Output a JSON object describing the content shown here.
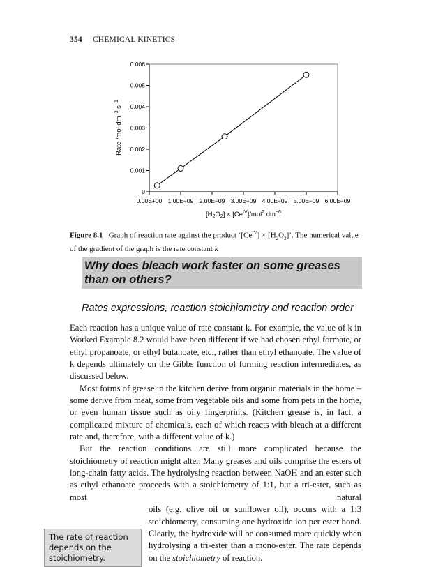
{
  "running_head": {
    "page_number": "354",
    "title": "CHEMICAL KINETICS"
  },
  "chart_data": {
    "type": "line",
    "title": "",
    "xlabel": "[H2O2] × [CeIV]/mol2 dm−6",
    "ylabel": "Rate /mol dm−3 s−1",
    "xlim": [
      0,
      6e-09
    ],
    "ylim": [
      0,
      0.006
    ],
    "x_ticks": [
      "0.00E+00",
      "1.00E−09",
      "2.00E−09",
      "3.00E−09",
      "4.00E−09",
      "5.00E−09",
      "6.00E−09"
    ],
    "y_ticks": [
      "0",
      "0.001",
      "0.002",
      "0.003",
      "0.004",
      "0.005",
      "0.006"
    ],
    "x": [
      2.5e-10,
      1e-09,
      2.4e-09,
      5e-09
    ],
    "y": [
      0.0003,
      0.0011,
      0.0026,
      0.0055
    ],
    "marker": "open-circle",
    "grid": false,
    "line_color": "#000000"
  },
  "caption": {
    "label": "Figure 8.1",
    "text": "Graph of reaction rate against the product ‘[Ce",
    "sup": "IV",
    "text2": "] × [H",
    "sub1": "2",
    "text3": "O",
    "sub2": "2",
    "text4": "]’. The numerical value of the gradient of the graph is the rate constant ",
    "k": "k"
  },
  "box_heading": "Why does bleach work faster on some greases than on others?",
  "subheading": "Rates expressions, reaction stoichiometry and reaction order",
  "paragraphs": [
    "Each reaction has a unique value of rate constant k. For example, the value of k in Worked Example 8.2 would have been different if we had chosen ethyl formate, or ethyl propanoate, or ethyl butanoate, etc., rather than ethyl ethanoate. The value of k depends ultimately on the Gibbs function of forming reaction intermediates, as discussed below.",
    "Most forms of grease in the kitchen derive from organic materials in the home – some derive from meat, some from vegetable oils and some from pets in the home, or even human tissue such as oily fingerprints. (Kitchen grease is, in fact, a complicated mixture of chemicals, each of which reacts with bleach at a different rate and, therefore, with a different value of k.)",
    "But the reaction conditions are still more complicated because the stoichiometry of reaction might alter. Many greases and oils comprise the esters of long-chain fatty acids. The hydrolysing reaction between NaOH and an ester such as ethyl ethanoate proceeds with a stoichiometry of 1:1, but a tri-ester, such as most natural",
    "oils (e.g. olive oil or sunflower oil), occurs with a 1:3 stoichiometry, consuming one hydroxide ion per ester bond. Clearly, the hydroxide will be consumed more quickly when hydrolysing a tri-ester than a mono-ester. The rate depends on the ",
    "stoichiometry",
    " of reaction."
  ],
  "sidebar_note": "The rate of reaction depends on the stoichiometry."
}
